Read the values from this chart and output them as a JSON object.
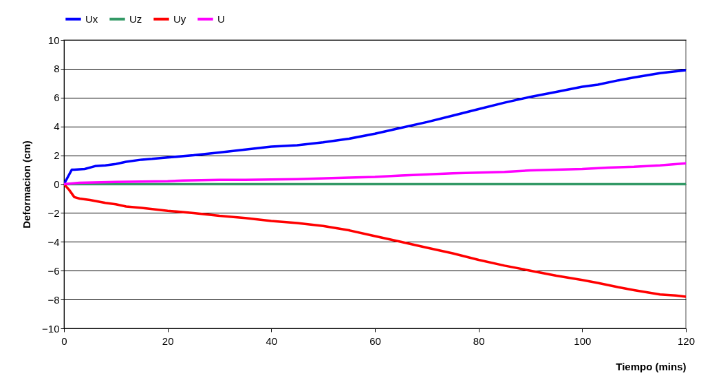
{
  "chart_data": {
    "type": "line",
    "xlabel": "Tiempo (mins)",
    "ylabel": "Deformacion (cm)",
    "xlim": [
      0,
      120
    ],
    "xticks": [
      0,
      20,
      40,
      60,
      80,
      100,
      120
    ],
    "ylim": [
      -10,
      10
    ],
    "yticks": [
      -10,
      -8,
      -6,
      -4,
      -2,
      0,
      2,
      4,
      6,
      8,
      10
    ],
    "grid": "y",
    "legend": "top",
    "marker": "none",
    "line_style": "solid",
    "series": [
      {
        "name": "Ux",
        "color": "#0000ff",
        "x": [
          0,
          1.5,
          2,
          4,
          6,
          8,
          10,
          12,
          15,
          17,
          20,
          25,
          30,
          35,
          40,
          45,
          50,
          55,
          60,
          65,
          70,
          75,
          80,
          85,
          90,
          95,
          100,
          103,
          107,
          110,
          115,
          120
        ],
        "values": [
          0,
          1.0,
          1.0,
          1.05,
          1.25,
          1.3,
          1.4,
          1.55,
          1.7,
          1.75,
          1.85,
          2.0,
          2.2,
          2.4,
          2.6,
          2.7,
          2.9,
          3.15,
          3.5,
          3.9,
          4.3,
          4.75,
          5.2,
          5.65,
          6.05,
          6.4,
          6.75,
          6.9,
          7.2,
          7.4,
          7.7,
          7.9
        ]
      },
      {
        "name": "Uz",
        "color": "#339966",
        "x": [
          0,
          20,
          40,
          60,
          80,
          100,
          120
        ],
        "values": [
          0,
          0,
          0,
          0,
          0,
          0,
          0
        ]
      },
      {
        "name": "Uy",
        "color": "#ff0000",
        "x": [
          0,
          1,
          2,
          3,
          5,
          8,
          10,
          12,
          15,
          20,
          25,
          30,
          35,
          40,
          45,
          50,
          55,
          60,
          65,
          70,
          75,
          80,
          85,
          90,
          95,
          100,
          103,
          107,
          110,
          115,
          118,
          120
        ],
        "values": [
          0,
          -0.4,
          -0.9,
          -1.0,
          -1.1,
          -1.3,
          -1.4,
          -1.55,
          -1.65,
          -1.85,
          -2.0,
          -2.2,
          -2.35,
          -2.55,
          -2.7,
          -2.9,
          -3.2,
          -3.6,
          -4.0,
          -4.4,
          -4.8,
          -5.25,
          -5.65,
          -6.0,
          -6.35,
          -6.65,
          -6.85,
          -7.15,
          -7.35,
          -7.65,
          -7.72,
          -7.8
        ]
      },
      {
        "name": "U",
        "color": "#ff00ff",
        "x": [
          0,
          3,
          10,
          20,
          23,
          30,
          35,
          45,
          55,
          60,
          65,
          75,
          85,
          90,
          100,
          105,
          110,
          115,
          120
        ],
        "values": [
          0,
          0.1,
          0.15,
          0.2,
          0.25,
          0.3,
          0.3,
          0.35,
          0.45,
          0.5,
          0.6,
          0.75,
          0.85,
          0.95,
          1.05,
          1.15,
          1.2,
          1.3,
          1.45
        ]
      }
    ]
  }
}
